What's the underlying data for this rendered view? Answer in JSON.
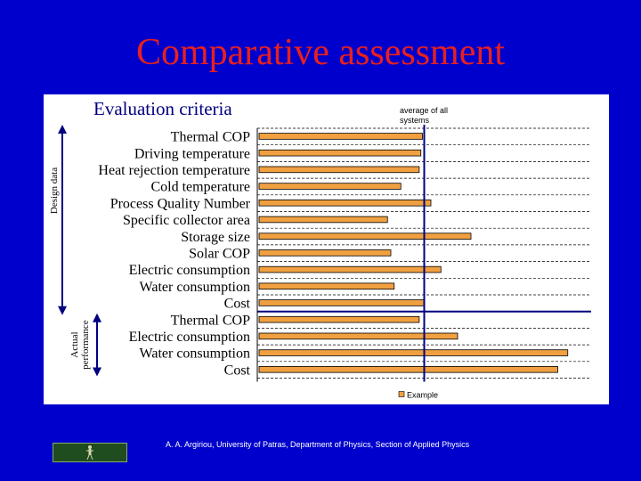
{
  "slide": {
    "title": "Comparative assessment",
    "footer": "A. A. Argiriou, University of Patras, Department of Physics, Section of Applied Physics",
    "logo_text_left": "",
    "logo_text_right": ""
  },
  "chart_data": {
    "type": "bar",
    "orientation": "horizontal",
    "title": "Evaluation criteria",
    "reference_line_label": "average of all systems",
    "reference_value": 1.0,
    "categories": [
      "Thermal COP",
      "Driving temperature",
      "Heat rejection temperature",
      "Cold temperature",
      "Process Quality Number",
      "Specific collector area",
      "Storage size",
      "Solar COP",
      "Electric consumption",
      "Water consumption",
      "Cost",
      "Thermal COP",
      "Electric consumption",
      "Water consumption",
      "Cost"
    ],
    "groups": [
      {
        "label": "Design data",
        "from": 0,
        "to": 10
      },
      {
        "label": "Actual performance",
        "from": 11,
        "to": 14
      }
    ],
    "series": [
      {
        "name": "Example",
        "color": "#f0a040",
        "values": [
          0.99,
          0.98,
          0.97,
          0.86,
          1.04,
          0.78,
          1.28,
          0.8,
          1.1,
          0.82,
          1.0,
          0.97,
          1.2,
          1.86,
          1.8
        ]
      }
    ],
    "xlim": [
      0,
      2
    ],
    "grid": true,
    "legend_position": "bottom-center"
  }
}
